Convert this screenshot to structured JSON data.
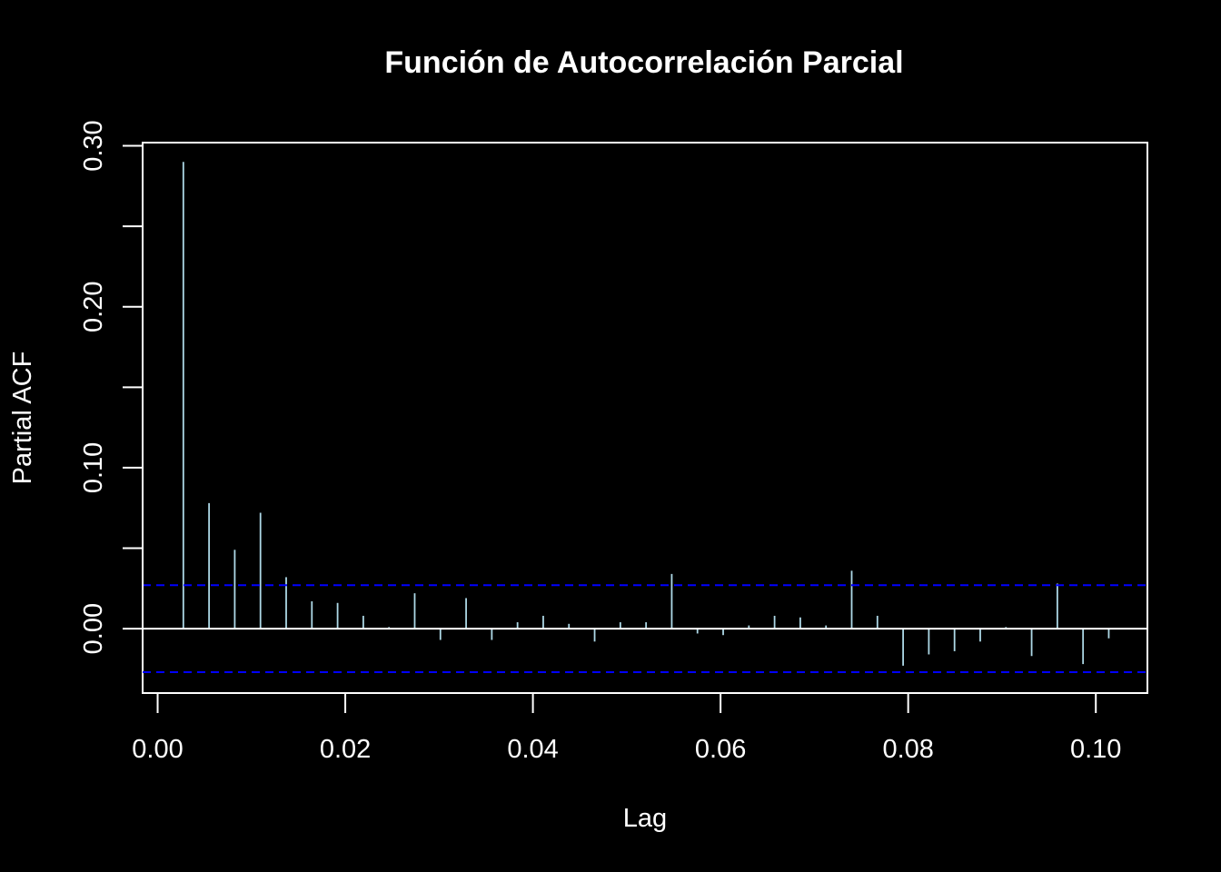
{
  "chart_data": {
    "type": "bar",
    "title": "Función de Autocorrelación Parcial",
    "xlabel": "Lag",
    "ylabel": "Partial ACF",
    "xlim": [
      -0.0016,
      0.1055
    ],
    "ylim": [
      -0.04,
      0.302
    ],
    "x_ticks": [
      0.0,
      0.02,
      0.04,
      0.06,
      0.08,
      0.1
    ],
    "x_tick_labels": [
      "0.00",
      "0.02",
      "0.04",
      "0.06",
      "0.08",
      "0.10"
    ],
    "y_ticks": [
      0.0,
      0.05,
      0.1,
      0.15,
      0.2,
      0.25,
      0.3
    ],
    "y_tick_labels": [
      "0.00",
      "",
      "0.10",
      "",
      "0.20",
      "",
      "0.30"
    ],
    "confidence_band": 0.027,
    "grid": false,
    "colors": {
      "background": "#000000",
      "foreground": "#ffffff",
      "bars": "#add8e6",
      "confidence": "#0000ff"
    },
    "lags": [
      0.00274,
      0.00548,
      0.00822,
      0.01096,
      0.0137,
      0.01644,
      0.01918,
      0.02192,
      0.02466,
      0.0274,
      0.03014,
      0.03288,
      0.03562,
      0.03836,
      0.0411,
      0.04384,
      0.04658,
      0.04932,
      0.05206,
      0.0548,
      0.05754,
      0.06028,
      0.06302,
      0.06576,
      0.0685,
      0.07124,
      0.07398,
      0.07672,
      0.07946,
      0.0822,
      0.08494,
      0.08768,
      0.09042,
      0.09316,
      0.0959,
      0.09864,
      0.10138
    ],
    "values": [
      0.29,
      0.078,
      0.049,
      0.072,
      0.032,
      0.017,
      0.016,
      0.008,
      0.001,
      0.022,
      -0.007,
      0.019,
      -0.007,
      0.004,
      0.008,
      0.003,
      -0.008,
      0.004,
      0.004,
      0.034,
      -0.003,
      -0.004,
      0.002,
      0.008,
      0.007,
      0.002,
      0.036,
      0.008,
      -0.023,
      -0.016,
      -0.014,
      -0.008,
      0.001,
      -0.017,
      0.028,
      -0.022,
      -0.006
    ]
  }
}
